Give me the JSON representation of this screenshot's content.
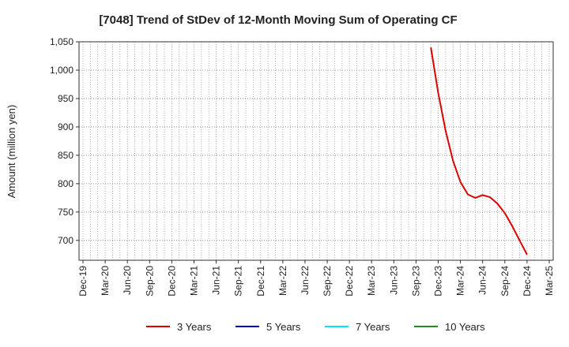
{
  "chart_data": {
    "type": "line",
    "title": "[7048]  Trend of StDev of 12-Month Moving Sum of Operating CF",
    "ylabel": "Amount (million yen)",
    "xlabel": "",
    "ylim": [
      665,
      1050
    ],
    "yticks": [
      700,
      750,
      800,
      850,
      900,
      950,
      1000,
      1050
    ],
    "ytick_labels": [
      "700",
      "750",
      "800",
      "850",
      "900",
      "950",
      "1,000",
      "1,050"
    ],
    "xticks": [
      "Dec-19",
      "Mar-20",
      "Jun-20",
      "Sep-20",
      "Dec-20",
      "Mar-21",
      "Jun-21",
      "Sep-21",
      "Dec-21",
      "Mar-22",
      "Jun-22",
      "Sep-22",
      "Dec-22",
      "Mar-23",
      "Jun-23",
      "Sep-23",
      "Dec-23",
      "Mar-24",
      "Jun-24",
      "Sep-24",
      "Dec-24",
      "Mar-25"
    ],
    "grid": true,
    "legend_position": "bottom",
    "series": [
      {
        "name": "3 Years",
        "color": "#dd0000",
        "x": [
          "Nov-23",
          "Dec-23",
          "Jan-24",
          "Feb-24",
          "Mar-24",
          "Apr-24",
          "May-24",
          "Jun-24",
          "Jul-24",
          "Aug-24",
          "Sep-24",
          "Oct-24",
          "Nov-24",
          "Dec-24"
        ],
        "values": [
          1040,
          960,
          893,
          840,
          803,
          781,
          775,
          780,
          776,
          765,
          748,
          725,
          700,
          675
        ]
      },
      {
        "name": "5 Years",
        "color": "#0000cc",
        "x": [],
        "values": []
      },
      {
        "name": "7 Years",
        "color": "#00e5ee",
        "x": [],
        "values": []
      },
      {
        "name": "10 Years",
        "color": "#228b22",
        "x": [],
        "values": []
      }
    ]
  }
}
